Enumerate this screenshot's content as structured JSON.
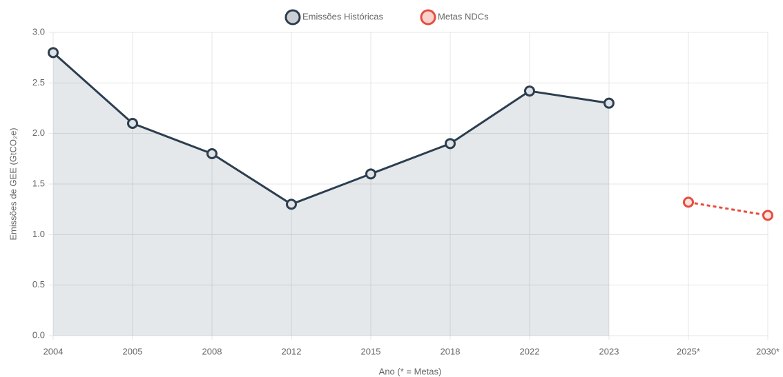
{
  "chart_data": {
    "type": "line",
    "xlabel": "Ano (* = Metas)",
    "ylabel": "Emissões de GEE (GtCO₂e)",
    "categories": [
      "2004",
      "2005",
      "2008",
      "2012",
      "2015",
      "2018",
      "2022",
      "2023",
      "2025*",
      "2030*"
    ],
    "series": [
      {
        "name": "Emissões Históricas",
        "color": "#2c3e50",
        "area": true,
        "dashed": false,
        "values": [
          2.8,
          2.1,
          1.8,
          1.3,
          1.6,
          1.9,
          2.42,
          2.3,
          null,
          null
        ]
      },
      {
        "name": "Metas NDCs",
        "color": "#e74c3c",
        "area": false,
        "dashed": true,
        "values": [
          null,
          null,
          null,
          null,
          null,
          null,
          null,
          null,
          1.32,
          1.19
        ]
      }
    ],
    "ylim": [
      0,
      3
    ],
    "yticks": [
      {
        "value": 0,
        "label": "0.0"
      },
      0.5,
      {
        "value": 1,
        "label": "1.0"
      },
      1.5,
      {
        "value": 2,
        "label": "2.0"
      },
      2.5,
      {
        "value": 3,
        "label": "3.0"
      }
    ],
    "grid": true,
    "legend": "top"
  }
}
